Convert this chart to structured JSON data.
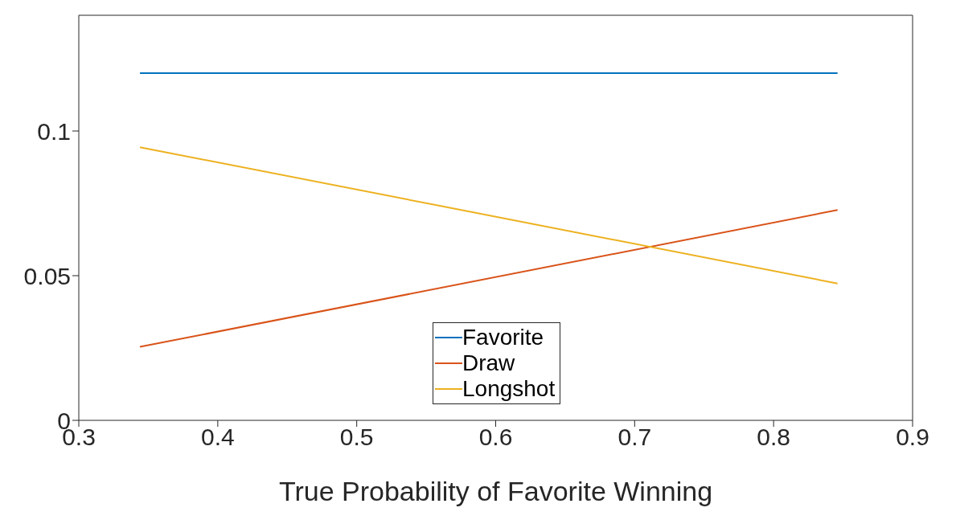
{
  "chart_data": {
    "type": "line",
    "xlabel": "True Probability of Favorite Winning",
    "x": [
      0.344,
      0.846
    ],
    "series": [
      {
        "name": "Favorite",
        "color": "#0072bd",
        "values": [
          0.12,
          0.12
        ]
      },
      {
        "name": "Draw",
        "color": "#d95319",
        "values": [
          0.0254,
          0.0727
        ]
      },
      {
        "name": "Longshot",
        "color": "#edb120",
        "values": [
          0.0944,
          0.0473
        ]
      }
    ],
    "xlim": [
      0.3,
      0.9
    ],
    "xticks": [
      0.3,
      0.4,
      0.5,
      0.6,
      0.7,
      0.8,
      0.9
    ],
    "ylim": [
      0,
      0.14
    ],
    "yticks": [
      0,
      0.05,
      0.1
    ],
    "grid": false,
    "legend": "bottom",
    "marker": "none",
    "line_style": "solid"
  }
}
